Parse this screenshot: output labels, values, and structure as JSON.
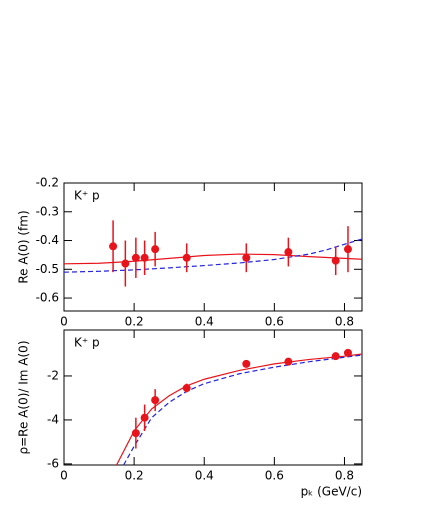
{
  "chart_data": [
    {
      "type": "scatter",
      "annotation": "K⁺ p",
      "y_label": "Re A(0) (fm)",
      "xlim": [
        0,
        0.85
      ],
      "ylim": [
        -0.645,
        -0.2
      ],
      "xticks": [
        0,
        0.2,
        0.4,
        0.6,
        0.8
      ],
      "yticks": [
        -0.2,
        -0.3,
        -0.4,
        -0.5,
        -0.6
      ],
      "series": [
        {
          "color": "#e8141c",
          "x": [
            0.14,
            0.175,
            0.205,
            0.23,
            0.26,
            0.35,
            0.52,
            0.64,
            0.775,
            0.81
          ],
          "values": [
            -0.42,
            -0.48,
            -0.46,
            -0.46,
            -0.43,
            -0.46,
            -0.46,
            -0.44,
            -0.47,
            -0.43
          ],
          "errors": [
            0.09,
            0.08,
            0.07,
            0.06,
            0.06,
            0.05,
            0.05,
            0.05,
            0.05,
            0.08
          ]
        }
      ],
      "lines": [
        {
          "color": "#e8141c",
          "dash": false,
          "x": [
            0,
            0.1,
            0.2,
            0.3,
            0.4,
            0.5,
            0.6,
            0.7,
            0.8,
            0.85
          ],
          "values": [
            -0.481,
            -0.479,
            -0.472,
            -0.462,
            -0.452,
            -0.447,
            -0.449,
            -0.456,
            -0.462,
            -0.465
          ]
        },
        {
          "color": "#2424e0",
          "dash": true,
          "x": [
            0,
            0.1,
            0.2,
            0.3,
            0.4,
            0.5,
            0.6,
            0.7,
            0.75,
            0.8,
            0.85
          ],
          "values": [
            -0.51,
            -0.507,
            -0.502,
            -0.495,
            -0.487,
            -0.478,
            -0.466,
            -0.447,
            -0.432,
            -0.413,
            -0.395
          ]
        }
      ]
    },
    {
      "type": "scatter",
      "annotation": "K⁺ p",
      "y_label": "ρ=Re A(0)/ Im A(0)",
      "x_label": "pₖ (GeV/c)",
      "xlim": [
        0,
        0.85
      ],
      "ylim": [
        -6.05,
        0.09
      ],
      "xticks": [
        0,
        0.2,
        0.4,
        0.6,
        0.8
      ],
      "yticks": [
        -2,
        -4,
        -6
      ],
      "series": [
        {
          "color": "#e8141c",
          "x": [
            0.205,
            0.23,
            0.26,
            0.35,
            0.52,
            0.64,
            0.775,
            0.81
          ],
          "values": [
            -4.6,
            -3.9,
            -3.1,
            -2.55,
            -1.45,
            -1.35,
            -1.1,
            -0.95
          ],
          "errors": [
            0.7,
            0.6,
            0.5,
            0.2,
            0.15,
            0.1,
            0.1,
            0.1
          ]
        }
      ],
      "lines": [
        {
          "color": "#e8141c",
          "dash": false,
          "x": [
            0.15,
            0.2,
            0.25,
            0.3,
            0.35,
            0.4,
            0.5,
            0.6,
            0.7,
            0.8,
            0.85
          ],
          "values": [
            -6.05,
            -4.5,
            -3.5,
            -2.9,
            -2.45,
            -2.15,
            -1.75,
            -1.45,
            -1.25,
            -1.1,
            -1.0
          ]
        },
        {
          "color": "#2424e0",
          "dash": true,
          "x": [
            0.17,
            0.2,
            0.25,
            0.3,
            0.35,
            0.4,
            0.5,
            0.6,
            0.7,
            0.8,
            0.85
          ],
          "values": [
            -6.05,
            -5.2,
            -3.9,
            -3.2,
            -2.7,
            -2.35,
            -1.9,
            -1.6,
            -1.35,
            -1.15,
            -1.05
          ]
        }
      ]
    }
  ]
}
